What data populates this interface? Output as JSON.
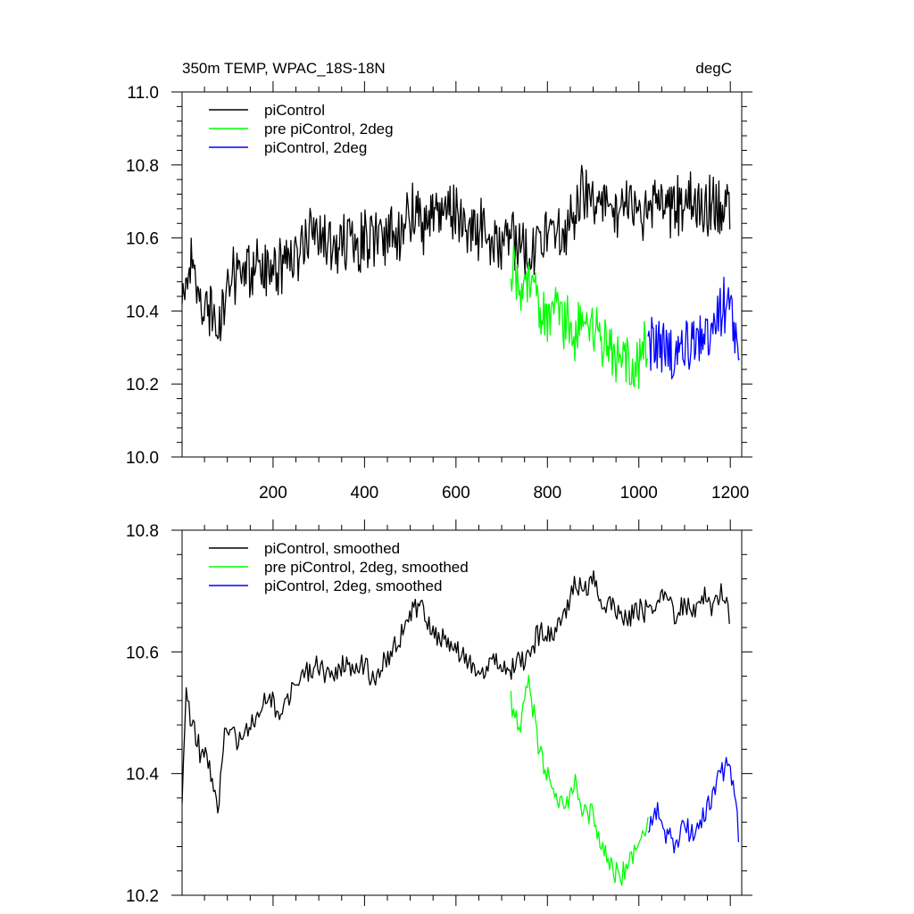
{
  "chart_data": [
    {
      "type": "line",
      "title": "350m TEMP, WPAC_18S-18N",
      "units": "degC",
      "xlim": [
        1,
        1225
      ],
      "ylim": [
        10.0,
        11.0
      ],
      "x_ticks": [
        200,
        400,
        600,
        800,
        1000,
        1200
      ],
      "x_tick_labels": [
        "200",
        "400",
        "600",
        "800",
        "1000",
        "1200"
      ],
      "y_ticks": [
        10.0,
        10.2,
        10.4,
        10.6,
        10.8,
        11.0
      ],
      "y_tick_labels": [
        "10.0",
        "10.2",
        "10.4",
        "10.6",
        "10.8",
        "11.0"
      ],
      "legend_position": "top-left",
      "series": [
        {
          "name": "piControl",
          "color": "#000000",
          "x": [
            1,
            20,
            40,
            60,
            80,
            100,
            120,
            140,
            160,
            180,
            200,
            220,
            240,
            260,
            280,
            300,
            320,
            340,
            360,
            380,
            400,
            420,
            440,
            460,
            480,
            500,
            520,
            540,
            560,
            580,
            600,
            620,
            640,
            660,
            680,
            700,
            720,
            740,
            760,
            780,
            800,
            820,
            840,
            860,
            880,
            900,
            920,
            940,
            960,
            980,
            1000,
            1020,
            1040,
            1060,
            1080,
            1100,
            1120,
            1140,
            1160,
            1180,
            1200
          ],
          "values": [
            10.45,
            10.52,
            10.44,
            10.42,
            10.36,
            10.46,
            10.5,
            10.5,
            10.52,
            10.52,
            10.54,
            10.52,
            10.57,
            10.56,
            10.6,
            10.6,
            10.58,
            10.58,
            10.58,
            10.56,
            10.6,
            10.58,
            10.6,
            10.63,
            10.62,
            10.67,
            10.65,
            10.65,
            10.68,
            10.68,
            10.66,
            10.63,
            10.62,
            10.62,
            10.58,
            10.57,
            10.6,
            10.58,
            10.56,
            10.62,
            10.6,
            10.64,
            10.6,
            10.68,
            10.74,
            10.7,
            10.71,
            10.68,
            10.67,
            10.68,
            10.66,
            10.68,
            10.7,
            10.68,
            10.69,
            10.67,
            10.7,
            10.66,
            10.69,
            10.7,
            10.65
          ]
        },
        {
          "name": "pre piControl, 2deg",
          "color": "#00ff00",
          "x": [
            720,
            740,
            760,
            780,
            800,
            820,
            840,
            860,
            880,
            900,
            920,
            940,
            960,
            980,
            1000,
            1020
          ],
          "values": [
            10.52,
            10.46,
            10.5,
            10.42,
            10.4,
            10.37,
            10.36,
            10.34,
            10.37,
            10.34,
            10.32,
            10.28,
            10.27,
            10.25,
            10.26,
            10.3
          ]
        },
        {
          "name": "piControl, 2deg",
          "color": "#0000ff",
          "x": [
            1020,
            1040,
            1060,
            1080,
            1100,
            1120,
            1140,
            1160,
            1180,
            1200,
            1220
          ],
          "values": [
            10.3,
            10.32,
            10.3,
            10.27,
            10.33,
            10.28,
            10.33,
            10.38,
            10.4,
            10.42,
            10.3
          ]
        }
      ]
    },
    {
      "type": "line",
      "xlim": [
        1,
        1225
      ],
      "ylim": [
        10.2,
        10.8
      ],
      "x_ticks": [
        200,
        400,
        600,
        800,
        1000,
        1200
      ],
      "y_ticks": [
        10.2,
        10.4,
        10.6,
        10.8
      ],
      "y_tick_labels": [
        "10.2",
        "10.4",
        "10.6",
        "10.8"
      ],
      "legend_position": "top-left",
      "series": [
        {
          "name": "piControl, smoothed",
          "color": "#000000",
          "x": [
            1,
            10,
            20,
            30,
            40,
            60,
            80,
            90,
            100,
            120,
            140,
            160,
            180,
            200,
            220,
            240,
            260,
            280,
            300,
            320,
            340,
            360,
            380,
            400,
            420,
            440,
            460,
            480,
            500,
            520,
            540,
            560,
            580,
            600,
            620,
            640,
            660,
            680,
            700,
            720,
            740,
            760,
            780,
            800,
            820,
            840,
            860,
            880,
            900,
            920,
            940,
            960,
            980,
            1000,
            1020,
            1040,
            1060,
            1080,
            1100,
            1120,
            1140,
            1160,
            1180,
            1200
          ],
          "values": [
            10.36,
            10.56,
            10.49,
            10.46,
            10.44,
            10.42,
            10.33,
            10.45,
            10.47,
            10.46,
            10.47,
            10.49,
            10.52,
            10.52,
            10.5,
            10.53,
            10.56,
            10.57,
            10.58,
            10.56,
            10.56,
            10.58,
            10.56,
            10.58,
            10.55,
            10.58,
            10.6,
            10.63,
            10.66,
            10.68,
            10.64,
            10.62,
            10.62,
            10.6,
            10.59,
            10.57,
            10.56,
            10.59,
            10.58,
            10.57,
            10.58,
            10.59,
            10.63,
            10.62,
            10.64,
            10.66,
            10.72,
            10.7,
            10.72,
            10.68,
            10.68,
            10.65,
            10.66,
            10.67,
            10.66,
            10.68,
            10.7,
            10.66,
            10.68,
            10.66,
            10.69,
            10.68,
            10.7,
            10.66
          ]
        },
        {
          "name": "pre piControl, 2deg, smoothed",
          "color": "#00ff00",
          "x": [
            720,
            740,
            760,
            770,
            780,
            800,
            820,
            840,
            860,
            880,
            900,
            920,
            940,
            960,
            980,
            1000,
            1020
          ],
          "values": [
            10.52,
            10.47,
            10.55,
            10.5,
            10.44,
            10.4,
            10.36,
            10.34,
            10.38,
            10.34,
            10.33,
            10.28,
            10.25,
            10.23,
            10.26,
            10.28,
            10.31
          ]
        },
        {
          "name": "piControl, 2deg, smoothed",
          "color": "#0000ff",
          "x": [
            1020,
            1040,
            1060,
            1080,
            1100,
            1120,
            1140,
            1160,
            1180,
            1200,
            1220
          ],
          "values": [
            10.31,
            10.34,
            10.3,
            10.28,
            10.31,
            10.3,
            10.33,
            10.36,
            10.4,
            10.41,
            10.29
          ]
        }
      ]
    }
  ]
}
